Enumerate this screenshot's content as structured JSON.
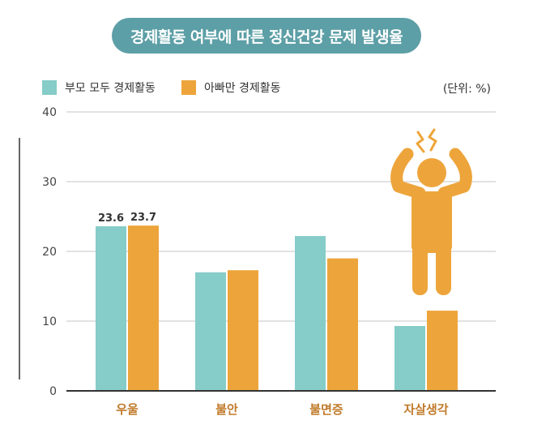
{
  "colors": {
    "series1": "#86ccc8",
    "series2": "#eda53b",
    "title_bg": "#5d9fa6",
    "grid": "#d9d9d9",
    "axis": "#333333",
    "label": "#c07a2a"
  },
  "chart_data": {
    "type": "bar",
    "title": "경제활동 여부에 따른 정신건강 문제 발생율",
    "unit": "(단위: %)",
    "categories": [
      "우울",
      "불안",
      "불면증",
      "자살생각"
    ],
    "series": [
      {
        "name": "부모 모두 경제활동",
        "values": [
          23.6,
          17.0,
          22.2,
          9.3
        ],
        "labels": [
          "23.6",
          null,
          null,
          null
        ]
      },
      {
        "name": "아빠만 경제활동",
        "values": [
          23.7,
          17.3,
          19.0,
          11.5
        ],
        "labels": [
          "23.7",
          null,
          null,
          null
        ]
      }
    ],
    "ylim": [
      0,
      40
    ],
    "yticks": [
      "0",
      "10",
      "20",
      "30",
      "40"
    ],
    "grid": true,
    "legend": "top-left"
  }
}
